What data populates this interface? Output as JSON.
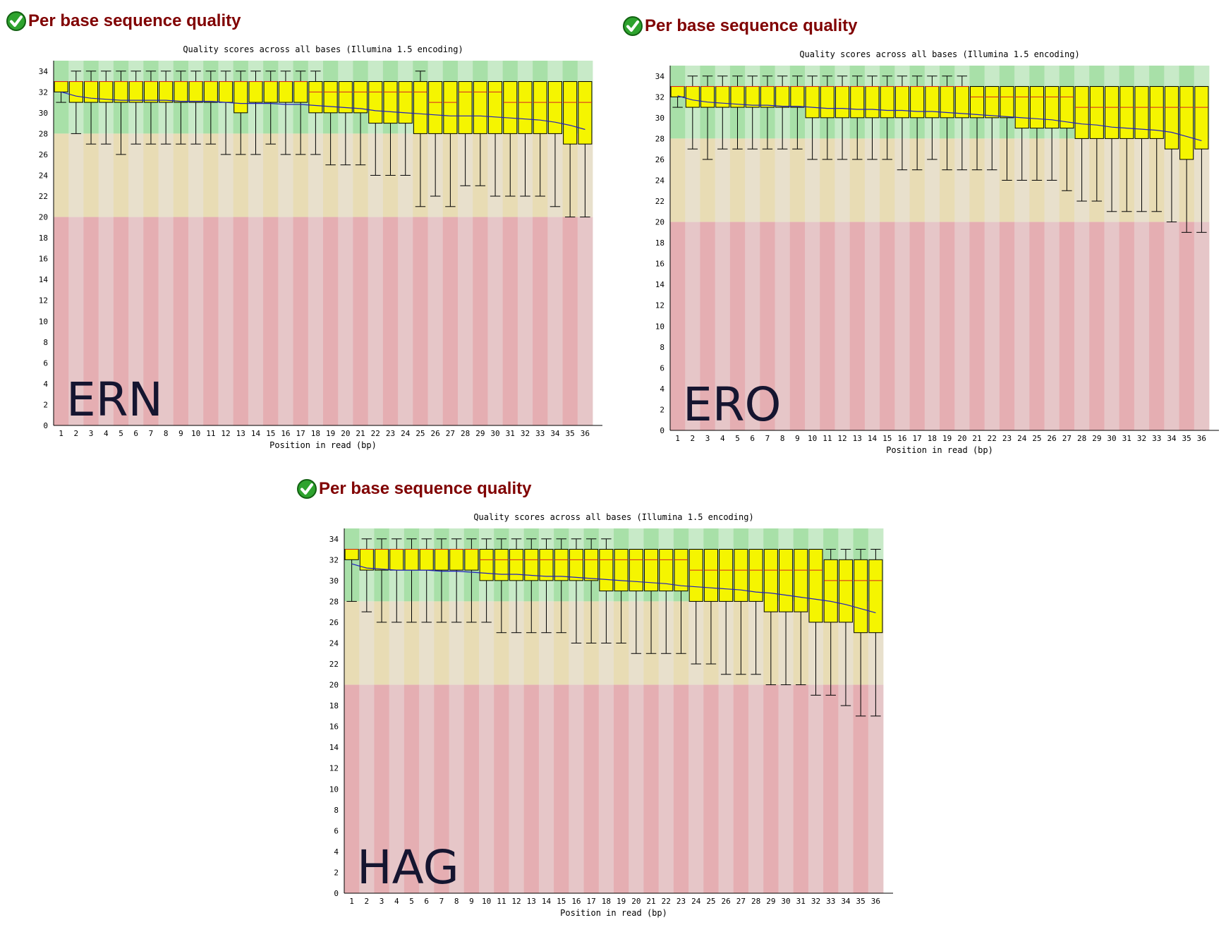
{
  "panels": [
    {
      "id": "ERN",
      "heading": "Per base sequence quality",
      "status": "pass",
      "chart_data": {
        "type": "boxplot",
        "title": "Quality scores across all bases (Illumina 1.5 encoding)",
        "xlabel": "Position in read (bp)",
        "ylabel": "",
        "ylim": [
          0,
          35
        ],
        "y_ticks": [
          0,
          2,
          4,
          6,
          8,
          10,
          12,
          14,
          16,
          18,
          20,
          22,
          24,
          26,
          28,
          30,
          32,
          34
        ],
        "x": [
          1,
          2,
          3,
          4,
          5,
          6,
          7,
          8,
          9,
          10,
          11,
          12,
          13,
          14,
          15,
          16,
          17,
          18,
          19,
          20,
          21,
          22,
          23,
          24,
          25,
          26,
          27,
          28,
          29,
          30,
          31,
          32,
          33,
          34,
          35,
          36
        ],
        "zones": {
          "good": [
            28,
            35
          ],
          "reasonable": [
            20,
            28
          ],
          "poor": [
            0,
            20
          ]
        },
        "stamp_label": "ERN",
        "series": {
          "lower_whisker": [
            31,
            28,
            27,
            27,
            26,
            27,
            27,
            27,
            27,
            27,
            27,
            26,
            26,
            26,
            27,
            26,
            26,
            26,
            25,
            25,
            25,
            24,
            24,
            24,
            21,
            22,
            21,
            23,
            23,
            22,
            22,
            22,
            22,
            21,
            20,
            20
          ],
          "q1": [
            32,
            31,
            31,
            31,
            31,
            31,
            31,
            31,
            31,
            31,
            31,
            31,
            30,
            31,
            31,
            31,
            31,
            30,
            30,
            30,
            30,
            29,
            29,
            29,
            28,
            28,
            28,
            28,
            28,
            28,
            28,
            28,
            28,
            28,
            27,
            27
          ],
          "median": [
            33,
            33,
            33,
            33,
            33,
            33,
            33,
            33,
            33,
            33,
            33,
            33,
            33,
            33,
            33,
            33,
            33,
            32,
            32,
            32,
            32,
            32,
            32,
            32,
            32,
            31,
            31,
            32,
            32,
            32,
            31,
            31,
            31,
            31,
            31,
            31
          ],
          "q3": [
            33,
            33,
            33,
            33,
            33,
            33,
            33,
            33,
            33,
            33,
            33,
            33,
            33,
            33,
            33,
            33,
            33,
            33,
            33,
            33,
            33,
            33,
            33,
            33,
            33,
            33,
            33,
            33,
            33,
            33,
            33,
            33,
            33,
            33,
            33,
            33
          ],
          "upper_whisker": [
            33,
            34,
            34,
            34,
            34,
            34,
            34,
            34,
            34,
            34,
            34,
            34,
            34,
            34,
            34,
            34,
            34,
            34,
            33,
            33,
            33,
            33,
            33,
            33,
            34,
            33,
            33,
            33,
            33,
            33,
            33,
            33,
            33,
            33,
            33,
            33
          ],
          "mean": [
            32.0,
            31.6,
            31.4,
            31.3,
            31.2,
            31.2,
            31.2,
            31.2,
            31.1,
            31.1,
            31.1,
            31.0,
            30.9,
            30.9,
            30.9,
            30.8,
            30.8,
            30.7,
            30.6,
            30.5,
            30.4,
            30.2,
            30.1,
            30.0,
            29.9,
            29.8,
            29.7,
            29.7,
            29.7,
            29.6,
            29.5,
            29.4,
            29.3,
            29.1,
            28.8,
            28.4
          ]
        }
      }
    },
    {
      "id": "ERO",
      "heading": "Per base sequence quality",
      "status": "pass",
      "chart_data": {
        "type": "boxplot",
        "title": "Quality scores across all bases (Illumina 1.5 encoding)",
        "xlabel": "Position in read (bp)",
        "ylabel": "",
        "ylim": [
          0,
          35
        ],
        "y_ticks": [
          0,
          2,
          4,
          6,
          8,
          10,
          12,
          14,
          16,
          18,
          20,
          22,
          24,
          26,
          28,
          30,
          32,
          34
        ],
        "x": [
          1,
          2,
          3,
          4,
          5,
          6,
          7,
          8,
          9,
          10,
          11,
          12,
          13,
          14,
          15,
          16,
          17,
          18,
          19,
          20,
          21,
          22,
          23,
          24,
          25,
          26,
          27,
          28,
          29,
          30,
          31,
          32,
          33,
          34,
          35,
          36
        ],
        "zones": {
          "good": [
            28,
            35
          ],
          "reasonable": [
            20,
            28
          ],
          "poor": [
            0,
            20
          ]
        },
        "stamp_label": "ERO",
        "series": {
          "lower_whisker": [
            31,
            27,
            26,
            27,
            27,
            27,
            27,
            27,
            27,
            26,
            26,
            26,
            26,
            26,
            26,
            25,
            25,
            26,
            25,
            25,
            25,
            25,
            24,
            24,
            24,
            24,
            23,
            22,
            22,
            21,
            21,
            21,
            21,
            20,
            19,
            19
          ],
          "q1": [
            32,
            31,
            31,
            31,
            31,
            31,
            31,
            31,
            31,
            30,
            30,
            30,
            30,
            30,
            30,
            30,
            30,
            30,
            30,
            30,
            30,
            30,
            30,
            29,
            29,
            29,
            29,
            28,
            28,
            28,
            28,
            28,
            28,
            27,
            26,
            27
          ],
          "median": [
            33,
            33,
            33,
            33,
            33,
            33,
            33,
            33,
            33,
            33,
            33,
            33,
            33,
            33,
            33,
            33,
            33,
            33,
            33,
            33,
            32,
            32,
            32,
            32,
            32,
            32,
            32,
            31,
            31,
            31,
            31,
            31,
            31,
            31,
            31,
            31
          ],
          "q3": [
            33,
            33,
            33,
            33,
            33,
            33,
            33,
            33,
            33,
            33,
            33,
            33,
            33,
            33,
            33,
            33,
            33,
            33,
            33,
            33,
            33,
            33,
            33,
            33,
            33,
            33,
            33,
            33,
            33,
            33,
            33,
            33,
            33,
            33,
            33,
            33
          ],
          "upper_whisker": [
            33,
            34,
            34,
            34,
            34,
            34,
            34,
            34,
            34,
            34,
            34,
            34,
            34,
            34,
            34,
            34,
            34,
            34,
            34,
            34,
            33,
            33,
            33,
            33,
            33,
            33,
            33,
            33,
            33,
            33,
            33,
            33,
            33,
            33,
            33,
            33
          ],
          "mean": [
            32.1,
            31.7,
            31.5,
            31.4,
            31.3,
            31.2,
            31.2,
            31.1,
            31.1,
            31.0,
            30.9,
            30.9,
            30.8,
            30.8,
            30.7,
            30.7,
            30.6,
            30.6,
            30.5,
            30.4,
            30.3,
            30.2,
            30.1,
            30.0,
            29.9,
            29.8,
            29.6,
            29.4,
            29.3,
            29.1,
            29.0,
            28.9,
            28.8,
            28.6,
            28.2,
            27.8
          ]
        }
      }
    },
    {
      "id": "HAG",
      "heading": "Per base sequence quality",
      "status": "pass",
      "chart_data": {
        "type": "boxplot",
        "title": "Quality scores across all bases (Illumina 1.5 encoding)",
        "xlabel": "Position in read (bp)",
        "ylabel": "",
        "ylim": [
          0,
          35
        ],
        "y_ticks": [
          0,
          2,
          4,
          6,
          8,
          10,
          12,
          14,
          16,
          18,
          20,
          22,
          24,
          26,
          28,
          30,
          32,
          34
        ],
        "x": [
          1,
          2,
          3,
          4,
          5,
          6,
          7,
          8,
          9,
          10,
          11,
          12,
          13,
          14,
          15,
          16,
          17,
          18,
          19,
          20,
          21,
          22,
          23,
          24,
          25,
          26,
          27,
          28,
          29,
          30,
          31,
          32,
          33,
          34,
          35,
          36
        ],
        "zones": {
          "good": [
            28,
            35
          ],
          "reasonable": [
            20,
            28
          ],
          "poor": [
            0,
            20
          ]
        },
        "stamp_label": "HAG",
        "series": {
          "lower_whisker": [
            28,
            27,
            26,
            26,
            26,
            26,
            26,
            26,
            26,
            26,
            25,
            25,
            25,
            25,
            25,
            24,
            24,
            24,
            24,
            23,
            23,
            23,
            23,
            22,
            22,
            21,
            21,
            21,
            20,
            20,
            20,
            19,
            19,
            18,
            17,
            17
          ],
          "q1": [
            32,
            31,
            31,
            31,
            31,
            31,
            31,
            31,
            31,
            30,
            30,
            30,
            30,
            30,
            30,
            30,
            30,
            29,
            29,
            29,
            29,
            29,
            29,
            28,
            28,
            28,
            28,
            28,
            27,
            27,
            27,
            26,
            26,
            26,
            25,
            25
          ],
          "median": [
            33,
            33,
            33,
            33,
            33,
            33,
            33,
            33,
            33,
            32,
            32,
            32,
            32,
            32,
            32,
            32,
            32,
            32,
            32,
            32,
            32,
            32,
            32,
            31,
            31,
            31,
            31,
            31,
            31,
            31,
            31,
            31,
            30,
            30,
            30,
            30
          ],
          "q3": [
            33,
            33,
            33,
            33,
            33,
            33,
            33,
            33,
            33,
            33,
            33,
            33,
            33,
            33,
            33,
            33,
            33,
            33,
            33,
            33,
            33,
            33,
            33,
            33,
            33,
            33,
            33,
            33,
            33,
            33,
            33,
            33,
            32,
            32,
            32,
            32
          ],
          "upper_whisker": [
            33,
            34,
            34,
            34,
            34,
            34,
            34,
            34,
            34,
            34,
            34,
            34,
            34,
            34,
            34,
            34,
            34,
            34,
            33,
            33,
            33,
            33,
            33,
            33,
            33,
            33,
            33,
            33,
            33,
            33,
            33,
            33,
            33,
            33,
            33,
            33
          ],
          "mean": [
            31.6,
            31.2,
            31.1,
            31.0,
            31.0,
            31.0,
            30.9,
            30.9,
            30.8,
            30.7,
            30.6,
            30.6,
            30.5,
            30.4,
            30.4,
            30.3,
            30.2,
            30.1,
            30.0,
            29.9,
            29.8,
            29.7,
            29.5,
            29.4,
            29.3,
            29.2,
            29.1,
            28.9,
            28.8,
            28.6,
            28.4,
            28.2,
            28.0,
            27.7,
            27.3,
            26.9
          ]
        }
      }
    }
  ]
}
